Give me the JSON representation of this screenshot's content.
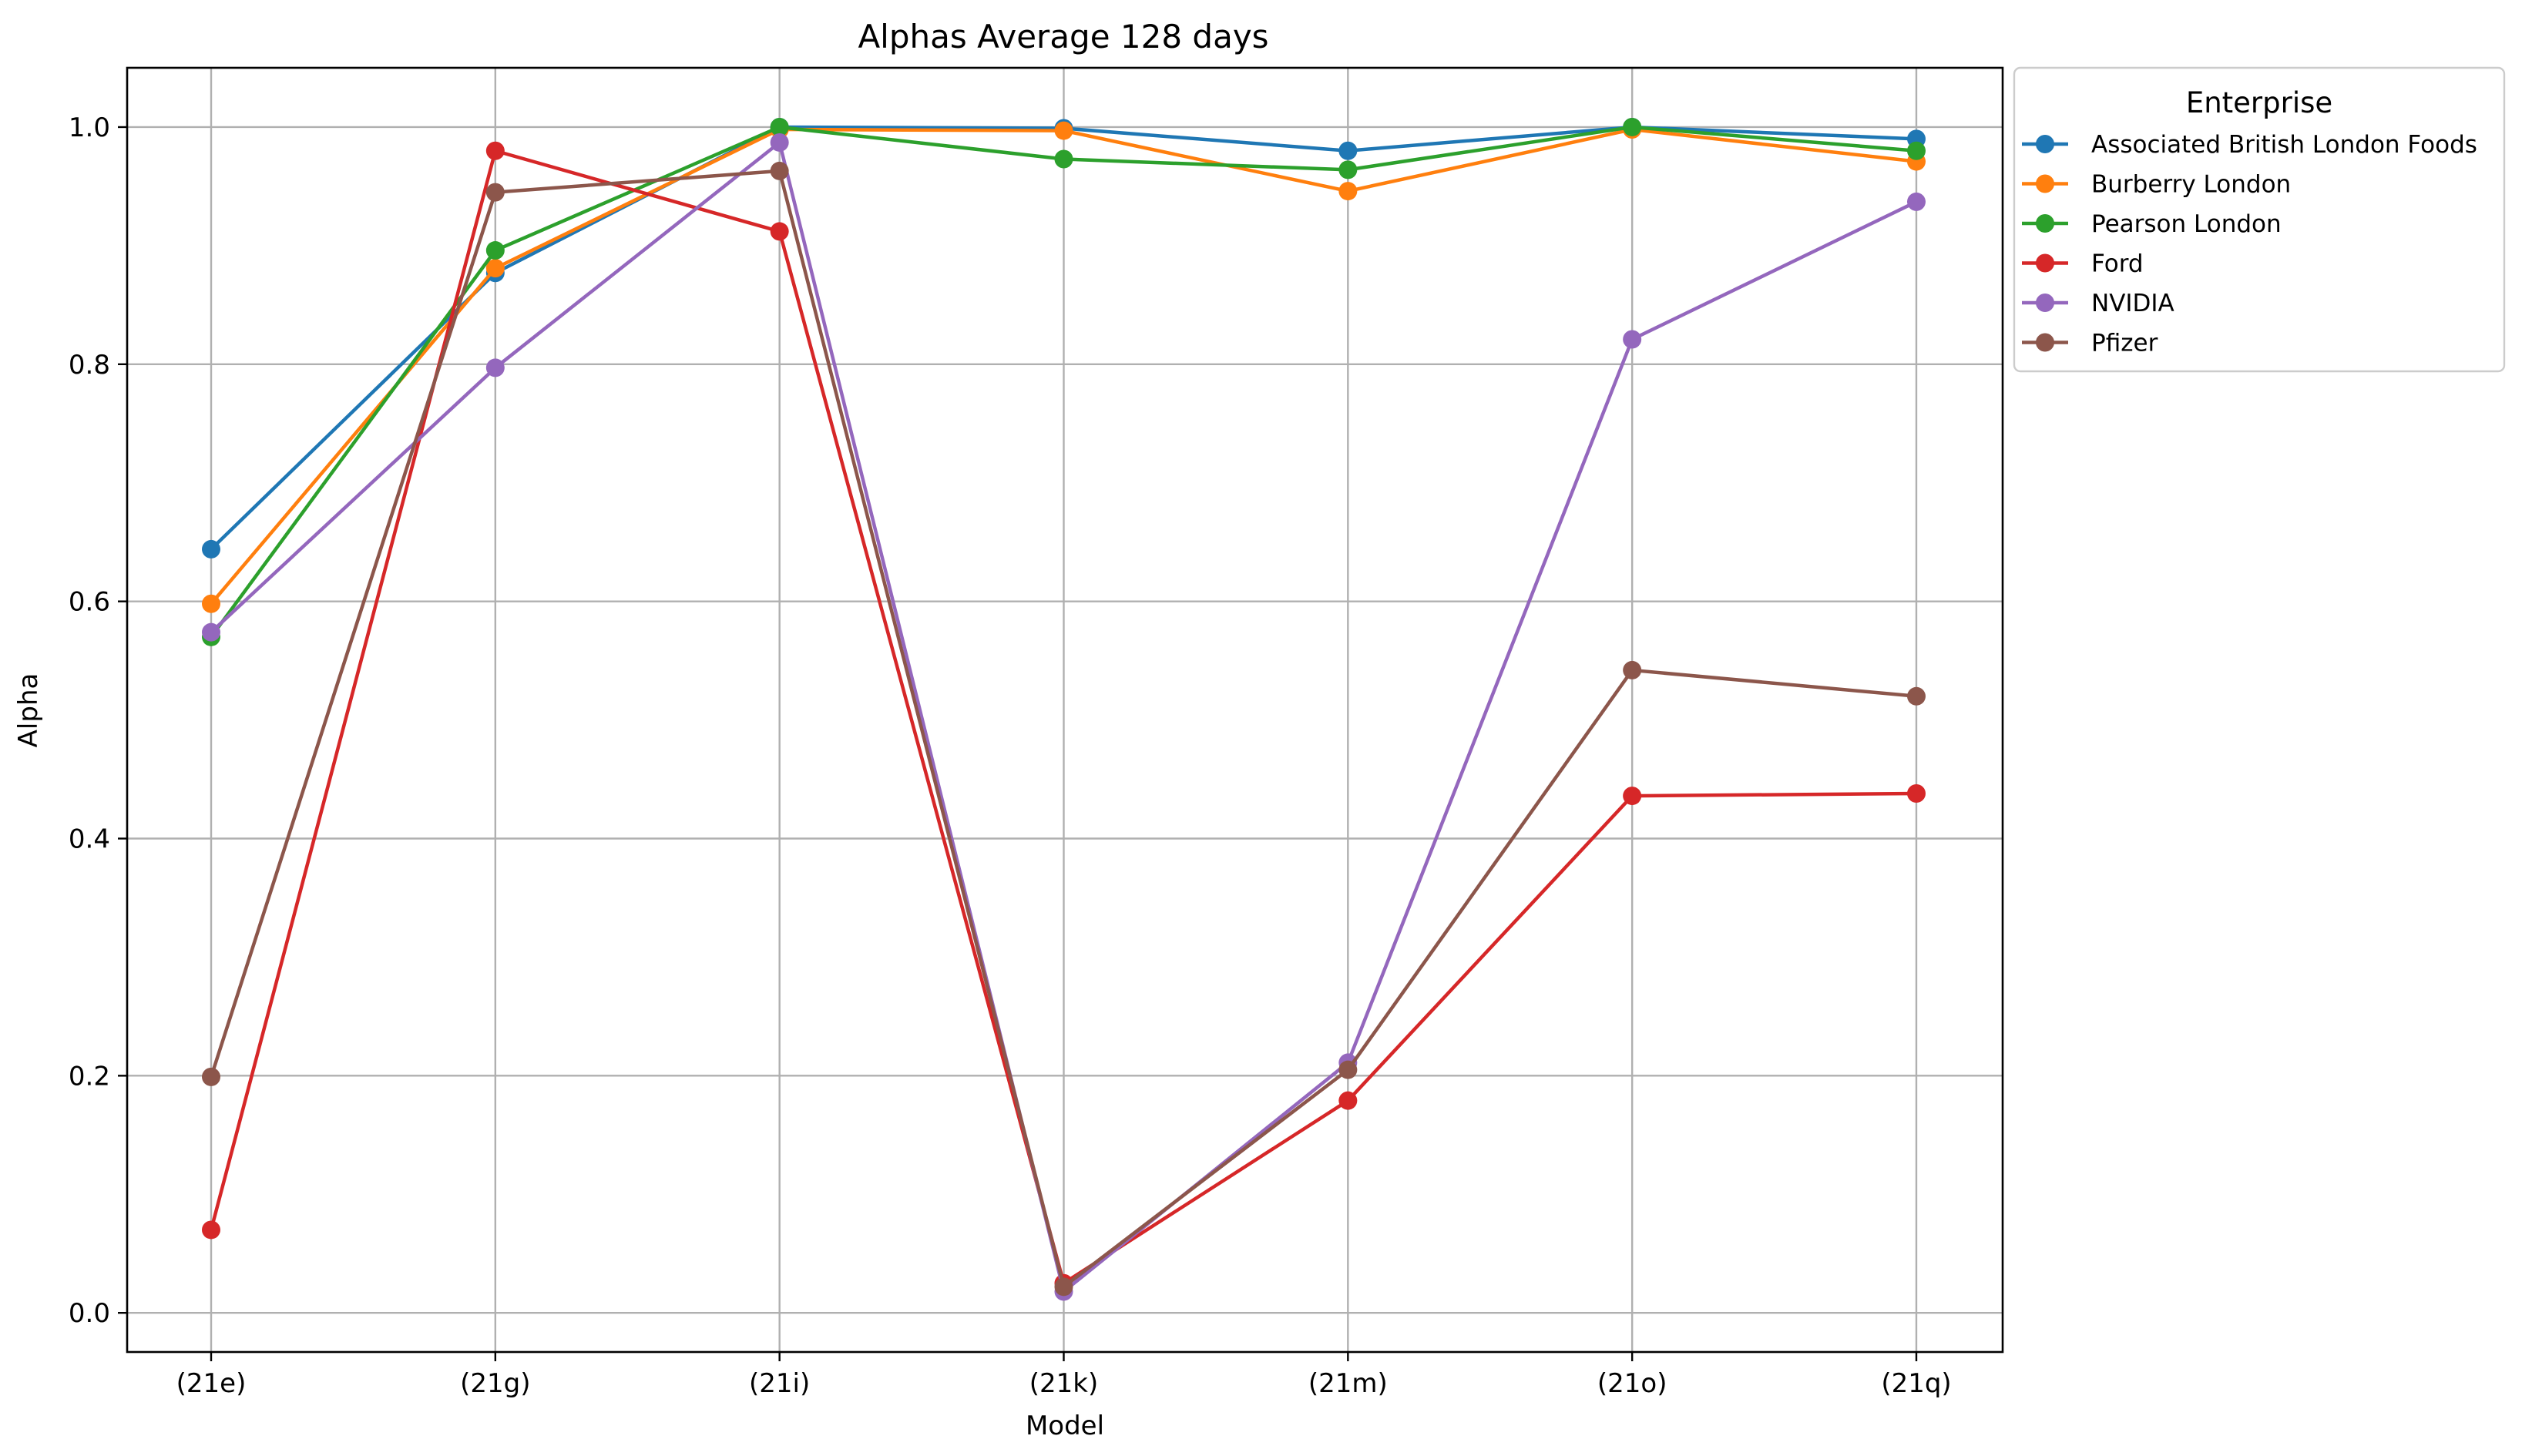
{
  "chart_data": {
    "type": "line",
    "title": "Alphas Average 128 days",
    "xlabel": "Model",
    "ylabel": "Alpha",
    "categories": [
      "(21e)",
      "(21g)",
      "(21i)",
      "(21k)",
      "(21m)",
      "(21o)",
      "(21q)"
    ],
    "ylim": [
      -0.033,
      1.05
    ],
    "yticks": [
      0.0,
      0.2,
      0.4,
      0.6,
      0.8,
      1.0
    ],
    "ytick_labels": [
      "0.0",
      "0.2",
      "0.4",
      "0.6",
      "0.8",
      "1.0"
    ],
    "grid": true,
    "legend": {
      "title": "Enterprise",
      "placement": "outside-top-right"
    },
    "marker": "circle",
    "series": [
      {
        "name": "Associated British London Foods",
        "color": "#1f77b4",
        "values": [
          0.644,
          0.877,
          1.0,
          0.999,
          0.98,
          1.0,
          0.99
        ]
      },
      {
        "name": "Burberry London",
        "color": "#ff7f0e",
        "values": [
          0.598,
          0.881,
          0.998,
          0.997,
          0.946,
          0.998,
          0.971
        ]
      },
      {
        "name": "Pearson London",
        "color": "#2ca02c",
        "values": [
          0.57,
          0.896,
          1.0,
          0.973,
          0.964,
          1.0,
          0.98
        ]
      },
      {
        "name": "Ford",
        "color": "#d62728",
        "values": [
          0.07,
          0.98,
          0.912,
          0.025,
          0.179,
          0.436,
          0.438
        ]
      },
      {
        "name": "NVIDIA",
        "color": "#9467bd",
        "values": [
          0.574,
          0.797,
          0.987,
          0.018,
          0.211,
          0.821,
          0.937
        ]
      },
      {
        "name": "Pfizer",
        "color": "#8c564b",
        "values": [
          0.199,
          0.945,
          0.963,
          0.022,
          0.205,
          0.542,
          0.52
        ]
      }
    ]
  }
}
